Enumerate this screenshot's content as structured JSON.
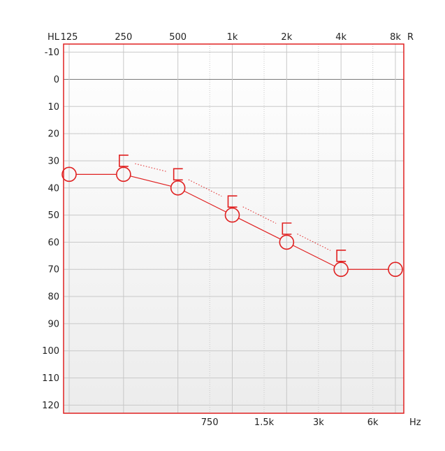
{
  "chart_data": {
    "type": "line",
    "title": "",
    "corner_left_label": "HL",
    "corner_right_label": "R",
    "x_unit_label": "Hz",
    "top_ticks": [
      {
        "f": 125,
        "label": "125"
      },
      {
        "f": 250,
        "label": "250"
      },
      {
        "f": 500,
        "label": "500"
      },
      {
        "f": 1000,
        "label": "1k"
      },
      {
        "f": 2000,
        "label": "2k"
      },
      {
        "f": 4000,
        "label": "4k"
      },
      {
        "f": 8000,
        "label": "8k"
      }
    ],
    "bottom_ticks": [
      {
        "f": 750,
        "label": "750"
      },
      {
        "f": 1500,
        "label": "1.5k"
      },
      {
        "f": 3000,
        "label": "3k"
      },
      {
        "f": 6000,
        "label": "6k"
      }
    ],
    "y_ticks": [
      -10,
      0,
      10,
      20,
      30,
      40,
      50,
      60,
      70,
      80,
      90,
      100,
      110,
      120
    ],
    "xlim": [
      125,
      8000
    ],
    "ylim": [
      -13,
      123
    ],
    "x_scale": "log2",
    "y_inverted": true,
    "grid": true,
    "series": [
      {
        "marker": "circle",
        "x": [
          125,
          250,
          500,
          1000,
          2000,
          4000,
          8000
        ],
        "y": [
          35,
          35,
          40,
          50,
          60,
          70,
          70
        ]
      },
      {
        "marker": "bracket-left",
        "x": [
          250,
          500,
          1000,
          2000,
          4000
        ],
        "y": [
          30,
          35,
          45,
          55,
          65
        ]
      }
    ],
    "colors": {
      "series": "#e02020",
      "border": "#e02020",
      "grid": "#c8c8c8",
      "zero_line": "#7a7a7a",
      "bg_top": "#ffffff",
      "bg_bottom": "#ececec"
    }
  }
}
